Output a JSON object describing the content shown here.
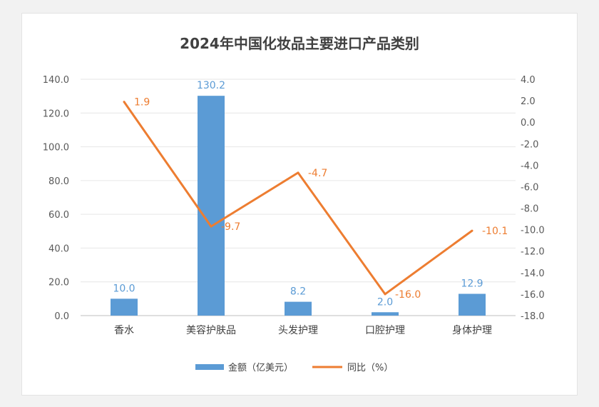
{
  "chart_data": {
    "type": "bar+line",
    "title": "2024年中国化妆品主要进口产品类别",
    "categories": [
      "香水",
      "美容护肤品",
      "头发护理",
      "口腔护理",
      "身体护理"
    ],
    "series": [
      {
        "name": "金额（亿美元）",
        "type": "bar",
        "axis": "left",
        "color": "#5b9bd5",
        "values": [
          10.0,
          130.2,
          8.2,
          2.0,
          12.9
        ],
        "labels": [
          "10.0",
          "130.2",
          "8.2",
          "2.0",
          "12.9"
        ]
      },
      {
        "name": "同比（%）",
        "type": "line",
        "axis": "right",
        "color": "#ed7d31",
        "values": [
          1.9,
          -9.7,
          -4.7,
          -16.0,
          -10.1
        ],
        "labels": [
          "1.9",
          "-9.7",
          "-4.7",
          "-16.0",
          "-10.1"
        ]
      }
    ],
    "y_left": {
      "min": 0,
      "max": 140,
      "step": 20,
      "tick_labels": [
        "0.0",
        "20.0",
        "40.0",
        "60.0",
        "80.0",
        "100.0",
        "120.0",
        "140.0"
      ]
    },
    "y_right": {
      "min": -18,
      "max": 4,
      "step": 2,
      "tick_labels": [
        "-18.0",
        "-16.0",
        "-14.0",
        "-12.0",
        "-10.0",
        "-8.0",
        "-6.0",
        "-4.0",
        "-2.0",
        "0.0",
        "2.0",
        "4.0"
      ]
    },
    "grid": true,
    "legend_position": "bottom"
  }
}
